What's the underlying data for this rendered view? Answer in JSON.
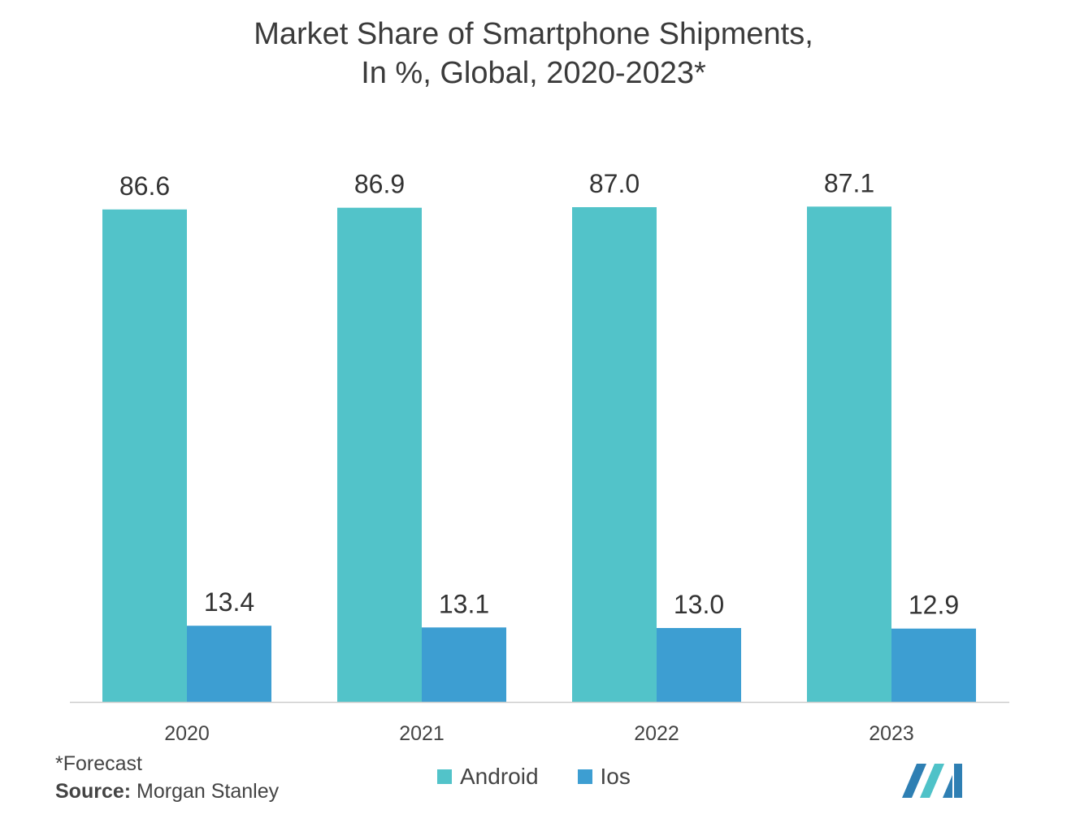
{
  "title_line1": "Market Share of Smartphone Shipments,",
  "title_line2": "In %, Global, 2020-2023*",
  "footnote": "*Forecast",
  "source_label": "Source:",
  "source_value": "Morgan Stanley",
  "colors": {
    "android": "#52c3c9",
    "ios": "#3d9ed2",
    "axis": "#cccccc",
    "logo_dark": "#2e7fb3",
    "logo_light": "#4fc2c8"
  },
  "chart_data": {
    "type": "bar",
    "categories": [
      "2020",
      "2021",
      "2022",
      "2023"
    ],
    "series": [
      {
        "name": "Android",
        "values": [
          86.6,
          86.9,
          87.0,
          87.1
        ]
      },
      {
        "name": "Ios",
        "values": [
          13.4,
          13.1,
          13.0,
          12.9
        ]
      }
    ],
    "title": "Market Share of Smartphone Shipments, In %, Global, 2020-2023*",
    "xlabel": "",
    "ylabel": "",
    "ylim": [
      0,
      100
    ],
    "grid": false,
    "legend_position": "bottom-center"
  }
}
